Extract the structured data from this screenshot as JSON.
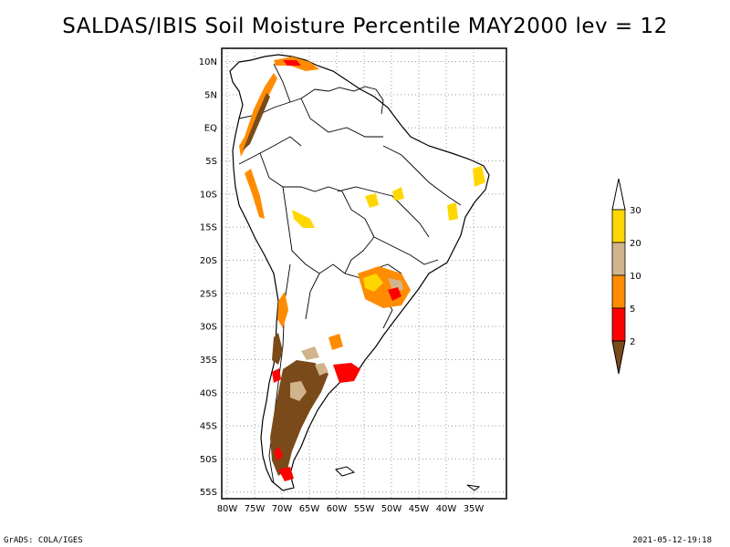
{
  "title": "SALDAS/IBIS Soil Moisture Percentile MAY2000 lev = 12",
  "footer": {
    "left": "GrADS: COLA/IGES",
    "right": "2021-05-12-19:18"
  },
  "map": {
    "lon_range": [
      -81,
      -29
    ],
    "lat_range": [
      -56,
      12
    ],
    "lat_ticks": [
      "10N",
      "5N",
      "EQ",
      "5S",
      "10S",
      "15S",
      "20S",
      "25S",
      "30S",
      "35S",
      "40S",
      "45S",
      "50S",
      "55S"
    ],
    "lon_ticks": [
      "80W",
      "75W",
      "70W",
      "65W",
      "60W",
      "55W",
      "50W",
      "45W",
      "40W",
      "35W"
    ],
    "grid": "dotted"
  },
  "legend": {
    "thresholds": [
      "2",
      "5",
      "10",
      "20",
      "30"
    ],
    "colors": [
      "#7a4a1a",
      "#ff0000",
      "#ff8c00",
      "#d2b48c",
      "#ffd700",
      "#ffffff"
    ]
  }
}
